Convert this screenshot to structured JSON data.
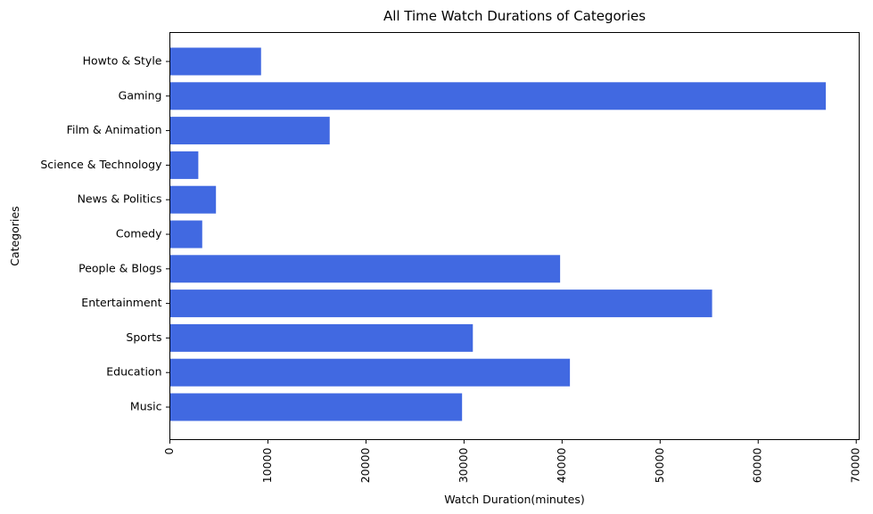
{
  "chart_data": {
    "type": "bar",
    "orientation": "horizontal",
    "title": "All Time Watch Durations of Categories",
    "xlabel": "Watch Duration(minutes)",
    "ylabel": "Categories",
    "categories": [
      "Music",
      "Education",
      "Sports",
      "Entertainment",
      "People & Blogs",
      "Comedy",
      "News & Politics",
      "Science & Technology",
      "Film & Animation",
      "Gaming",
      "Howto & Style"
    ],
    "values": [
      29800,
      40800,
      30900,
      55300,
      39800,
      3300,
      4700,
      2900,
      16300,
      66900,
      9300
    ],
    "xlim": [
      0,
      70300
    ],
    "xticks": [
      0,
      10000,
      20000,
      30000,
      40000,
      50000,
      60000,
      70000
    ],
    "bar_color": "#4169e1",
    "grid": false
  }
}
